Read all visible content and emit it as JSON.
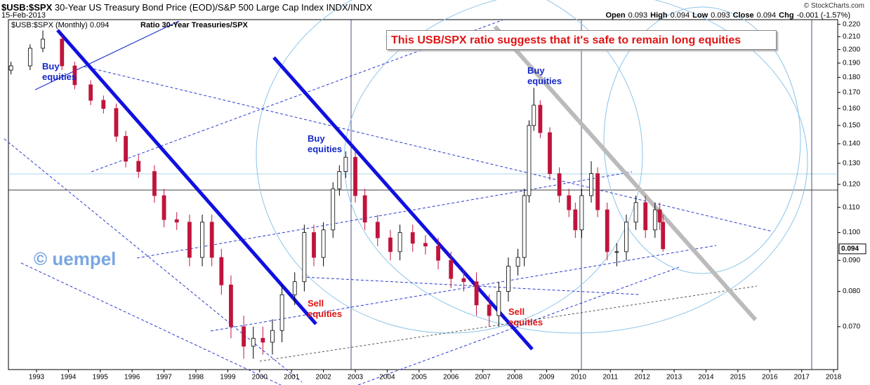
{
  "header": {
    "symbol": "$USB:$SPX",
    "description": "30-Year US Treasury Bond Price (EOD)/S&P 500 Large Cap Index  INDX/INDX",
    "date": "15-Feb-2013",
    "credit": "© StockCharts.com",
    "stats": [
      {
        "label": "Open",
        "value": 0.093
      },
      {
        "label": "High",
        "value": 0.094
      },
      {
        "label": "Low",
        "value": 0.093
      },
      {
        "label": "Close",
        "value": 0.094
      },
      {
        "label": "Chg",
        "value": "-0.001 (-1.57%)"
      }
    ]
  },
  "chart_data": {
    "type": "candlestick",
    "legend": "$USB:$SPX (Monthly) 0.094",
    "title": "Ratio 30-Year Treasuries/SPX",
    "annotations": [
      "This USB/SPX ratio suggests that it's safe to remain long equities",
      "Buy equities",
      "Buy equities",
      "Buy equities",
      "Sell equities",
      "Sell equities",
      "© uempel"
    ],
    "x": [
      1992.2,
      1992.8,
      1993.2,
      1993.8,
      1994.2,
      1994.7,
      1995.1,
      1995.5,
      1995.8,
      1996.2,
      1996.7,
      1997.0,
      1997.4,
      1997.8,
      1998.2,
      1998.5,
      1998.8,
      1999.1,
      1999.5,
      1999.8,
      2000.1,
      2000.4,
      2000.7,
      2001.1,
      2001.4,
      2001.7,
      2002.0,
      2002.3,
      2002.5,
      2002.7,
      2003.0,
      2003.3,
      2003.7,
      2004.1,
      2004.4,
      2004.8,
      2005.2,
      2005.6,
      2006.0,
      2006.4,
      2006.8,
      2007.2,
      2007.5,
      2007.8,
      2008.1,
      2008.3,
      2008.45,
      2008.6,
      2008.8,
      2009.1,
      2009.4,
      2009.7,
      2009.9,
      2010.1,
      2010.4,
      2010.6,
      2010.9,
      2011.2,
      2011.5,
      2011.8,
      2012.1,
      2012.4,
      2012.55,
      2012.65
    ],
    "open": [
      0.185,
      0.188,
      0.201,
      0.208,
      0.188,
      0.175,
      0.165,
      0.16,
      0.144,
      0.131,
      0.126,
      0.115,
      0.105,
      0.104,
      0.091,
      0.104,
      0.091,
      0.082,
      0.07,
      0.065,
      0.067,
      0.066,
      0.069,
      0.079,
      0.083,
      0.1,
      0.091,
      0.101,
      0.118,
      0.126,
      0.133,
      0.115,
      0.104,
      0.098,
      0.093,
      0.1,
      0.096,
      0.095,
      0.09,
      0.084,
      0.083,
      0.076,
      0.073,
      0.08,
      0.088,
      0.091,
      0.115,
      0.15,
      0.162,
      0.146,
      0.125,
      0.115,
      0.109,
      0.101,
      0.115,
      0.125,
      0.109,
      0.093,
      0.093,
      0.104,
      0.112,
      0.101,
      0.109,
      0.104
    ],
    "high": [
      0.191,
      0.204,
      0.215,
      0.211,
      0.191,
      0.178,
      0.168,
      0.163,
      0.147,
      0.134,
      0.129,
      0.118,
      0.108,
      0.107,
      0.107,
      0.107,
      0.094,
      0.085,
      0.073,
      0.07,
      0.07,
      0.072,
      0.082,
      0.086,
      0.103,
      0.103,
      0.104,
      0.121,
      0.129,
      0.136,
      0.136,
      0.118,
      0.107,
      0.101,
      0.103,
      0.103,
      0.099,
      0.098,
      0.093,
      0.087,
      0.086,
      0.079,
      0.083,
      0.091,
      0.094,
      0.118,
      0.153,
      0.173,
      0.165,
      0.149,
      0.128,
      0.118,
      0.112,
      0.118,
      0.131,
      0.128,
      0.112,
      0.096,
      0.107,
      0.115,
      0.115,
      0.112,
      0.112,
      0.107
    ],
    "low": [
      0.182,
      0.185,
      0.198,
      0.185,
      0.172,
      0.162,
      0.157,
      0.141,
      0.128,
      0.123,
      0.112,
      0.102,
      0.101,
      0.088,
      0.088,
      0.088,
      0.079,
      0.067,
      0.062,
      0.062,
      0.063,
      0.063,
      0.066,
      0.076,
      0.08,
      0.088,
      0.088,
      0.098,
      0.115,
      0.123,
      0.112,
      0.101,
      0.095,
      0.09,
      0.09,
      0.093,
      0.092,
      0.087,
      0.081,
      0.08,
      0.073,
      0.07,
      0.07,
      0.077,
      0.085,
      0.088,
      0.112,
      0.147,
      0.143,
      0.122,
      0.112,
      0.106,
      0.098,
      0.098,
      0.112,
      0.106,
      0.09,
      0.088,
      0.09,
      0.101,
      0.098,
      0.098,
      0.101,
      0.093
    ],
    "close": [
      0.188,
      0.201,
      0.208,
      0.188,
      0.175,
      0.165,
      0.16,
      0.144,
      0.131,
      0.126,
      0.115,
      0.105,
      0.104,
      0.091,
      0.104,
      0.091,
      0.082,
      0.07,
      0.065,
      0.067,
      0.066,
      0.069,
      0.079,
      0.083,
      0.1,
      0.091,
      0.101,
      0.118,
      0.126,
      0.133,
      0.115,
      0.104,
      0.098,
      0.093,
      0.1,
      0.096,
      0.095,
      0.09,
      0.084,
      0.083,
      0.076,
      0.073,
      0.08,
      0.088,
      0.091,
      0.115,
      0.15,
      0.162,
      0.146,
      0.125,
      0.115,
      0.109,
      0.101,
      0.115,
      0.125,
      0.109,
      0.093,
      0.093,
      0.104,
      0.112,
      0.101,
      0.109,
      0.104,
      0.094
    ],
    "colors": {
      "up": "#ffffff",
      "down": "#c0143c"
    },
    "last_value": 0.094,
    "log_scale": true,
    "xlim": [
      1992.12,
      2018.13
    ],
    "ylim": [
      0.0595,
      0.224
    ],
    "xticks": [
      1993,
      1994,
      1995,
      1996,
      1997,
      1998,
      1999,
      2000,
      2001,
      2002,
      2003,
      2004,
      2005,
      2006,
      2007,
      2008,
      2009,
      2010,
      2011,
      2012,
      2013,
      2014,
      2015,
      2016,
      2017,
      2018
    ],
    "yticks": [
      {
        "value": 0.07,
        "label": "0.070"
      },
      {
        "value": 0.08,
        "label": "0.080"
      },
      {
        "value": 0.09,
        "label": "0.090"
      },
      {
        "value": 0.1,
        "label": "0.100"
      },
      {
        "value": 0.11,
        "label": "0.110"
      },
      {
        "value": 0.12,
        "label": "0.120"
      },
      {
        "value": 0.13,
        "label": "0.130"
      },
      {
        "value": 0.14,
        "label": "0.140"
      },
      {
        "value": 0.15,
        "label": "0.150"
      },
      {
        "value": 0.16,
        "label": "0.160"
      },
      {
        "value": 0.17,
        "label": "0.170"
      },
      {
        "value": 0.18,
        "label": "0.180"
      },
      {
        "value": 0.19,
        "label": "0.190"
      },
      {
        "value": 0.2,
        "label": "0.200"
      },
      {
        "value": 0.21,
        "label": "0.210"
      },
      {
        "value": 0.22,
        "label": "0.220"
      }
    ]
  }
}
